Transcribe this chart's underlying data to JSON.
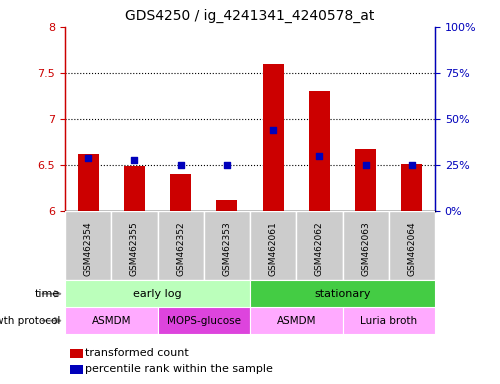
{
  "title": "GDS4250 / ig_4241341_4240578_at",
  "samples": [
    "GSM462354",
    "GSM462355",
    "GSM462352",
    "GSM462353",
    "GSM462061",
    "GSM462062",
    "GSM462063",
    "GSM462064"
  ],
  "transformed_counts": [
    6.62,
    6.49,
    6.4,
    6.12,
    7.6,
    7.3,
    6.67,
    6.51
  ],
  "percentile_ranks": [
    29,
    28,
    25,
    25,
    44,
    30,
    25,
    25
  ],
  "ylim_left": [
    6.0,
    8.0
  ],
  "ylim_right": [
    0,
    100
  ],
  "yticks_left": [
    6.0,
    6.5,
    7.0,
    7.5,
    8.0
  ],
  "ytick_labels_left": [
    "6",
    "6.5",
    "7",
    "7.5",
    "8"
  ],
  "yticks_right": [
    0,
    25,
    50,
    75,
    100
  ],
  "ytick_labels_right": [
    "0%",
    "25%",
    "50%",
    "75%",
    "100%"
  ],
  "bar_color": "#cc0000",
  "dot_color": "#0000bb",
  "bar_bottom": 6.0,
  "bar_width": 0.45,
  "dot_size": 22,
  "time_groups": [
    {
      "label": "early log",
      "start": 0,
      "end": 4,
      "color": "#bbffbb"
    },
    {
      "label": "stationary",
      "start": 4,
      "end": 8,
      "color": "#44cc44"
    }
  ],
  "protocol_groups": [
    {
      "label": "ASMDM",
      "start": 0,
      "end": 2,
      "color": "#ffaaff"
    },
    {
      "label": "MOPS-glucose",
      "start": 2,
      "end": 4,
      "color": "#dd44dd"
    },
    {
      "label": "ASMDM",
      "start": 4,
      "end": 6,
      "color": "#ffaaff"
    },
    {
      "label": "Luria broth",
      "start": 6,
      "end": 8,
      "color": "#ffaaff"
    }
  ],
  "legend_items": [
    {
      "label": "transformed count",
      "color": "#cc0000"
    },
    {
      "label": "percentile rank within the sample",
      "color": "#0000bb"
    }
  ],
  "left_tick_color": "#cc0000",
  "right_tick_color": "#0000bb",
  "sample_box_color": "#cccccc",
  "grid_dotted_at": [
    6.5,
    7.0,
    7.5
  ],
  "time_label": "time",
  "protocol_label": "growth protocol"
}
